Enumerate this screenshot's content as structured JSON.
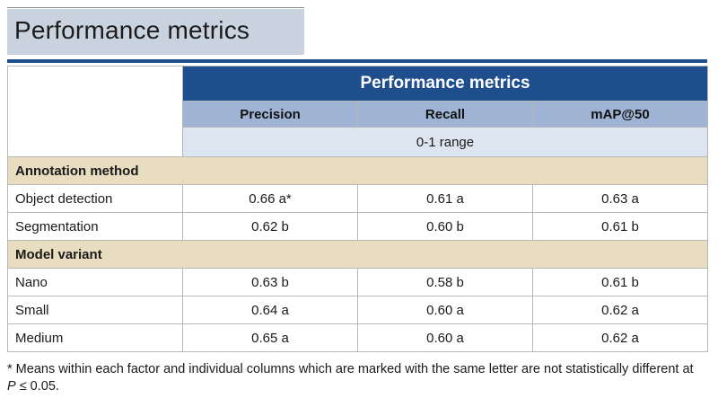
{
  "title": "Performance metrics",
  "table": {
    "header_group": "Performance metrics",
    "columns": [
      "Precision",
      "Recall",
      "mAP@50"
    ],
    "range_note": "0-1 range",
    "groups": [
      {
        "label": "Annotation method",
        "rows": [
          {
            "label": "Object detection",
            "values": [
              "0.66 a*",
              "0.61 a",
              "0.63 a"
            ]
          },
          {
            "label": "Segmentation",
            "values": [
              "0.62 b",
              "0.60 b",
              "0.61 b"
            ]
          }
        ]
      },
      {
        "label": "Model variant",
        "rows": [
          {
            "label": "Nano",
            "values": [
              "0.63 b",
              "0.58 b",
              "0.61 b"
            ]
          },
          {
            "label": "Small",
            "values": [
              "0.64 a",
              "0.60 a",
              "0.62 a"
            ]
          },
          {
            "label": "Medium",
            "values": [
              "0.65 a",
              "0.60 a",
              "0.62 a"
            ]
          }
        ]
      }
    ]
  },
  "footnote": {
    "line1": "* Means within each factor and individual columns which are marked with the same letter are not statistically different at",
    "p_symbol": "P",
    "line2_rest": " ≤ 0.05."
  },
  "colors": {
    "title_bg": "#c9d3df",
    "header_blue": "#1f4e8c",
    "column_header": "#9fb4d5",
    "range_row": "#dde5f1",
    "group_row": "#e8dcc1"
  }
}
